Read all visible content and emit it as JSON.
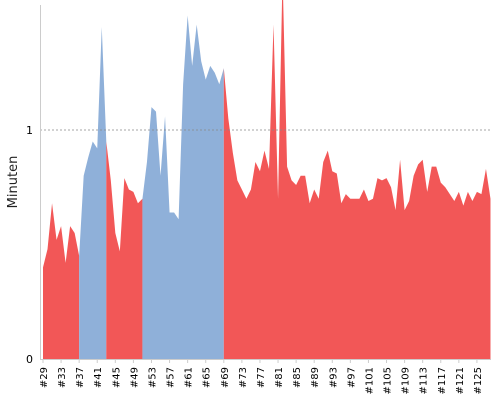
{
  "chart_data": {
    "type": "area",
    "ylabel": "Minuten",
    "ylim": [
      0,
      1.55
    ],
    "y_ticks": [
      {
        "value": 0,
        "label": "0"
      },
      {
        "value": 1,
        "label": "1"
      }
    ],
    "reference_line": 1,
    "x_tick_labels": [
      "#29",
      "#33",
      "#37",
      "#41",
      "#45",
      "#49",
      "#53",
      "#57",
      "#61",
      "#65",
      "#69",
      "#73",
      "#77",
      "#81",
      "#85",
      "#89",
      "#93",
      "#97",
      "#101",
      "#105",
      "#109",
      "#113",
      "#117",
      "#121",
      "#125"
    ],
    "x_first": 29,
    "x_last": 128,
    "colors": {
      "red": "#f25757",
      "blue": "#8fb0d9",
      "grid": "#888888"
    },
    "segments": [
      {
        "color": "red",
        "x": [
          29,
          30,
          31,
          32,
          33,
          34,
          35,
          36,
          37
        ],
        "values": [
          0.4,
          0.48,
          0.68,
          0.52,
          0.58,
          0.42,
          0.58,
          0.55,
          0.45
        ]
      },
      {
        "color": "blue",
        "x": [
          37,
          38,
          39,
          40,
          41,
          42,
          43
        ],
        "values": [
          0.45,
          0.8,
          0.88,
          0.95,
          0.92,
          1.45,
          0.95
        ]
      },
      {
        "color": "red",
        "x": [
          43,
          44,
          45,
          46,
          47,
          48,
          49,
          50,
          51
        ],
        "values": [
          0.95,
          0.78,
          0.55,
          0.47,
          0.79,
          0.74,
          0.73,
          0.68,
          0.7
        ]
      },
      {
        "color": "blue",
        "x": [
          51,
          52,
          53,
          54,
          55,
          56,
          57,
          58,
          59,
          60,
          61,
          62,
          63,
          64,
          65,
          66,
          67,
          68,
          69
        ],
        "values": [
          0.7,
          0.86,
          1.1,
          1.08,
          0.8,
          1.06,
          0.64,
          0.64,
          0.61,
          1.2,
          1.5,
          1.28,
          1.46,
          1.3,
          1.22,
          1.28,
          1.25,
          1.2,
          1.27
        ]
      },
      {
        "color": "red",
        "x": [
          69,
          70,
          71,
          72,
          73,
          74,
          75,
          76,
          77,
          78,
          79,
          80,
          81,
          82,
          83,
          84,
          85,
          86,
          87,
          88,
          89,
          90,
          91,
          92,
          93,
          94,
          95,
          96,
          97,
          98,
          99,
          100,
          101,
          102,
          103,
          104,
          105,
          106,
          107,
          108,
          109,
          110,
          111,
          112,
          113,
          114,
          115,
          116,
          117,
          118,
          119,
          120,
          121,
          122,
          123,
          124,
          125,
          126,
          127,
          128
        ],
        "values": [
          1.27,
          1.05,
          0.9,
          0.78,
          0.74,
          0.7,
          0.74,
          0.86,
          0.82,
          0.91,
          0.83,
          1.46,
          0.7,
          1.68,
          0.84,
          0.78,
          0.76,
          0.8,
          0.8,
          0.68,
          0.74,
          0.7,
          0.86,
          0.91,
          0.82,
          0.81,
          0.68,
          0.72,
          0.7,
          0.7,
          0.7,
          0.74,
          0.69,
          0.7,
          0.79,
          0.78,
          0.79,
          0.75,
          0.65,
          0.87,
          0.65,
          0.69,
          0.8,
          0.85,
          0.87,
          0.73,
          0.84,
          0.84,
          0.77,
          0.75,
          0.72,
          0.69,
          0.73,
          0.67,
          0.73,
          0.69,
          0.73,
          0.72,
          0.83,
          0.7
        ]
      }
    ]
  }
}
